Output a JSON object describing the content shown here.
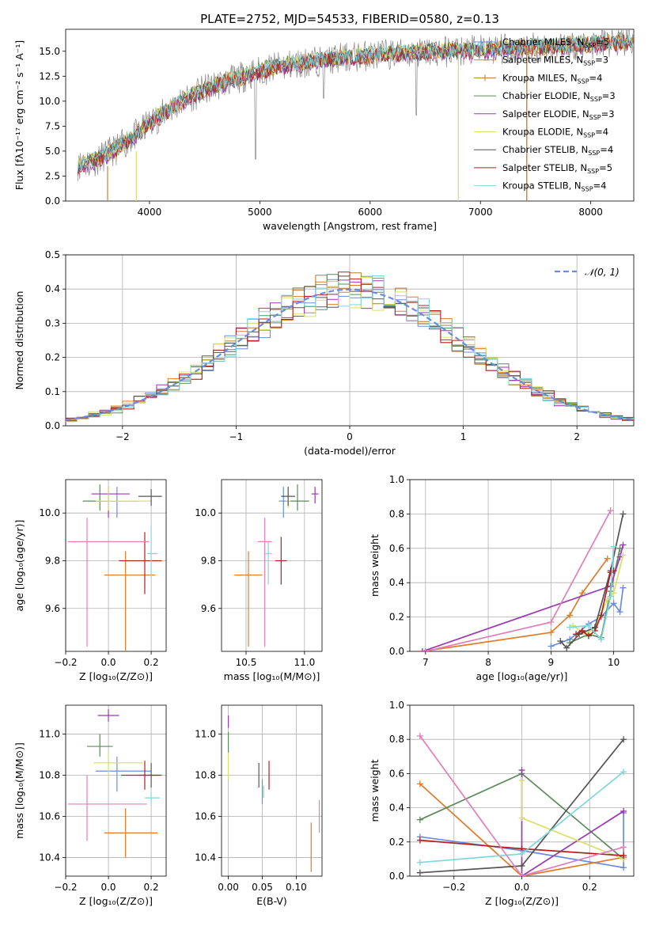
{
  "figure": {
    "title": "PLATE=2752, MJD=54533, FIBERID=0580, z=0.13"
  },
  "colors": {
    "chabrier_miles": "#6b8cdc",
    "salpeter_miles": "#e07b2a",
    "kroupa_miles": "#b37a2a",
    "chabrier_elodie": "#5c8a5c",
    "salpeter_elodie": "#9b39b0",
    "kroupa_elodie": "#d8e06a",
    "chabrier_stelib": "#555555",
    "salpeter_stelib": "#b22222",
    "kroupa_stelib": "#7fd6dc",
    "pink": "#e27fb8",
    "grid": "#b0b0b0"
  },
  "chart_data": [
    {
      "id": "spectrum",
      "type": "line",
      "xlabel": "wavelength [Angstrom, rest frame]",
      "ylabel": "Flux [fλ10⁻¹⁷ erg cm⁻² s⁻¹ A⁻¹]",
      "xlim": [
        3240,
        8390
      ],
      "ylim": [
        0,
        17.2
      ],
      "xticks": [
        4000,
        5000,
        6000,
        7000,
        8000
      ],
      "yticks": [
        0.0,
        2.5,
        5.0,
        7.5,
        10.0,
        12.5,
        15.0
      ],
      "grid": false,
      "legend_position": "upper right",
      "legend": [
        "Chabrier MILES, N_SSP=5",
        "Salpeter MILES, N_SSP=3",
        "Kroupa MILES, N_SSP=4",
        "Chabrier ELODIE, N_SSP=3",
        "Salpeter ELODIE, N_SSP=3",
        "Kroupa ELODIE, N_SSP=4",
        "Chabrier STELIB, N_SSP=4",
        "Salpeter STELIB, N_SSP=5",
        "Kroupa STELIB, N_SSP=4"
      ],
      "continuum": [
        {
          "x": 3350,
          "y": 3.6
        },
        {
          "x": 3500,
          "y": 4.0
        },
        {
          "x": 3700,
          "y": 5.2
        },
        {
          "x": 3900,
          "y": 6.8
        },
        {
          "x": 4000,
          "y": 7.8
        },
        {
          "x": 4200,
          "y": 9.3
        },
        {
          "x": 4400,
          "y": 10.6
        },
        {
          "x": 4600,
          "y": 11.6
        },
        {
          "x": 4800,
          "y": 12.3
        },
        {
          "x": 5000,
          "y": 13.0
        },
        {
          "x": 5200,
          "y": 13.5
        },
        {
          "x": 5500,
          "y": 14.0
        },
        {
          "x": 6000,
          "y": 14.6
        },
        {
          "x": 6500,
          "y": 14.9
        },
        {
          "x": 7000,
          "y": 15.1
        },
        {
          "x": 7500,
          "y": 15.4
        },
        {
          "x": 8000,
          "y": 15.7
        },
        {
          "x": 8390,
          "y": 16.0
        }
      ]
    },
    {
      "id": "residuals",
      "type": "histogram",
      "xlabel": "(data-model)/error",
      "ylabel": "Normed distribution",
      "xlim": [
        -2.5,
        2.5
      ],
      "ylim": [
        0,
        0.5
      ],
      "xticks": [
        -2,
        -1,
        0,
        1,
        2
      ],
      "yticks": [
        0.0,
        0.1,
        0.2,
        0.3,
        0.4,
        0.5
      ],
      "grid": true,
      "legend_position": "upper right",
      "legend": [
        "𝒩(0, 1)"
      ],
      "bin_width": 0.1
    },
    {
      "id": "age_vs_Z",
      "type": "scatter",
      "xlabel": "Z [log₁₀(Z/Z⊙)]",
      "ylabel": "age  [log₁₀(age/yr)]",
      "xlim": [
        -0.2,
        0.27
      ],
      "ylim": [
        9.42,
        10.14
      ],
      "xticks": [
        -0.2,
        0.0,
        0.2
      ],
      "yticks": [
        9.6,
        9.8,
        10.0
      ],
      "grid": true,
      "points": [
        {
          "x": 0.04,
          "y": 10.05,
          "xerr": [
            0.1,
            0.1
          ],
          "yerr": [
            0.07,
            0.06
          ],
          "color": "chabrier_miles"
        },
        {
          "x": 0.08,
          "y": 9.74,
          "xerr": [
            0.1,
            0.14
          ],
          "yerr": [
            0.32,
            0.1
          ],
          "color": "salpeter_miles"
        },
        {
          "x": -0.04,
          "y": 10.05,
          "xerr": [
            0.08,
            0.04
          ],
          "yerr": [
            0.04,
            0.07
          ],
          "color": "chabrier_elodie"
        },
        {
          "x": 0.0,
          "y": 10.08,
          "xerr": [
            0.08,
            0.1
          ],
          "yerr": [
            0.1,
            0.03
          ],
          "color": "salpeter_elodie"
        },
        {
          "x": 0.0,
          "y": 10.05,
          "xerr": [
            0.06,
            0.2
          ],
          "yerr": [
            0.04,
            0.06
          ],
          "color": "kroupa_elodie"
        },
        {
          "x": 0.2,
          "y": 10.07,
          "xerr": [
            0.06,
            0.05
          ],
          "yerr": [
            0.04,
            0.03
          ],
          "color": "chabrier_stelib"
        },
        {
          "x": 0.17,
          "y": 9.8,
          "xerr": [
            0.12,
            0.08
          ],
          "yerr": [
            0.14,
            0.12
          ],
          "color": "salpeter_stelib"
        },
        {
          "x": 0.2,
          "y": 9.83,
          "xerr": [
            0.02,
            0.03
          ],
          "yerr": [
            0.1,
            0.12
          ],
          "color": "kroupa_stelib"
        },
        {
          "x": -0.1,
          "y": 9.88,
          "xerr": [
            0.09,
            0.29
          ],
          "yerr": [
            0.44,
            0.1
          ],
          "color": "pink"
        }
      ]
    },
    {
      "id": "age_vs_mass",
      "type": "scatter",
      "xlabel": "mass [log₁₀(M/M⊙)]",
      "ylabel": "",
      "xlim": [
        10.29,
        11.15
      ],
      "ylim": [
        9.42,
        10.14
      ],
      "xticks": [
        10.5,
        11.0
      ],
      "yticks": [
        9.6,
        9.8,
        10.0
      ],
      "grid": true,
      "points": [
        {
          "x": 10.82,
          "y": 10.05,
          "xerr": [
            0.04,
            0.04
          ],
          "yerr": [
            0.07,
            0.06
          ],
          "color": "chabrier_miles"
        },
        {
          "x": 10.52,
          "y": 9.74,
          "xerr": [
            0.12,
            0.12
          ],
          "yerr": [
            0.3,
            0.1
          ],
          "color": "salpeter_miles"
        },
        {
          "x": 10.94,
          "y": 10.05,
          "xerr": [
            0.1,
            0.1
          ],
          "yerr": [
            0.04,
            0.07
          ],
          "color": "chabrier_elodie"
        },
        {
          "x": 11.09,
          "y": 10.08,
          "xerr": [
            0.03,
            0.03
          ],
          "yerr": [
            0.04,
            0.03
          ],
          "color": "salpeter_elodie"
        },
        {
          "x": 10.86,
          "y": 10.05,
          "xerr": [
            0.02,
            0.02
          ],
          "yerr": [
            0.03,
            0.06
          ],
          "color": "kroupa_elodie"
        },
        {
          "x": 10.86,
          "y": 10.07,
          "xerr": [
            0.06,
            0.06
          ],
          "yerr": [
            0.04,
            0.04
          ],
          "color": "chabrier_stelib"
        },
        {
          "x": 10.8,
          "y": 9.8,
          "xerr": [
            0.05,
            0.05
          ],
          "yerr": [
            0.1,
            0.1
          ],
          "color": "salpeter_stelib"
        },
        {
          "x": 10.69,
          "y": 9.83,
          "xerr": [
            0.03,
            0.03
          ],
          "yerr": [
            0.13,
            0.05
          ],
          "color": "kroupa_stelib"
        },
        {
          "x": 10.66,
          "y": 9.88,
          "xerr": [
            0.06,
            0.06
          ],
          "yerr": [
            0.44,
            0.1
          ],
          "color": "pink"
        }
      ]
    },
    {
      "id": "mass_weight_vs_age",
      "type": "line",
      "xlabel": "age  [log₁₀(age/yr)]",
      "ylabel": "mass weight",
      "xlim": [
        6.75,
        10.32
      ],
      "ylim": [
        0,
        1
      ],
      "xticks": [
        7,
        8,
        9,
        10
      ],
      "yticks": [
        0.0,
        0.2,
        0.4,
        0.6,
        0.8,
        1.0
      ],
      "grid": true,
      "series": [
        {
          "color": "chabrier_miles",
          "x": [
            9.0,
            9.3,
            9.6,
            9.8,
            10.0,
            10.1,
            10.15
          ],
          "y": [
            0.03,
            0.07,
            0.16,
            0.2,
            0.28,
            0.23,
            0.37
          ]
        },
        {
          "color": "salpeter_miles",
          "x": [
            6.95,
            9.0,
            9.3,
            9.5,
            9.9
          ],
          "y": [
            0.0,
            0.11,
            0.21,
            0.34,
            0.54
          ]
        },
        {
          "color": "chabrier_elodie",
          "x": [
            9.3,
            9.6,
            9.8,
            9.95,
            10.1
          ],
          "y": [
            0.05,
            0.1,
            0.08,
            0.35,
            0.6
          ]
        },
        {
          "color": "salpeter_elodie",
          "x": [
            6.95,
            9.95,
            10.1,
            10.15
          ],
          "y": [
            0.0,
            0.38,
            0.55,
            0.62
          ]
        },
        {
          "color": "kroupa_elodie",
          "x": [
            9.35,
            9.55,
            9.7,
            9.9,
            10.0,
            10.15
          ],
          "y": [
            0.15,
            0.1,
            0.14,
            0.3,
            0.34,
            0.56
          ]
        },
        {
          "color": "chabrier_stelib",
          "x": [
            9.15,
            9.25,
            9.45,
            9.7,
            9.95,
            10.15
          ],
          "y": [
            0.06,
            0.02,
            0.1,
            0.14,
            0.47,
            0.8
          ]
        },
        {
          "color": "salpeter_stelib",
          "x": [
            9.4,
            9.5,
            9.6,
            9.7,
            9.8,
            9.95,
            10.0
          ],
          "y": [
            0.1,
            0.12,
            0.09,
            0.12,
            0.21,
            0.46,
            0.47
          ]
        },
        {
          "color": "kroupa_stelib",
          "x": [
            9.3,
            9.6,
            9.8,
            9.95,
            10.0
          ],
          "y": [
            0.14,
            0.15,
            0.07,
            0.32,
            0.61
          ]
        },
        {
          "color": "pink",
          "x": [
            7.0,
            9.0,
            9.95
          ],
          "y": [
            0.0,
            0.17,
            0.82
          ]
        }
      ]
    },
    {
      "id": "mass_vs_Z",
      "type": "scatter",
      "xlabel": "Z [log₁₀(Z/Z⊙)]",
      "ylabel": "mass [log₁₀(M/M⊙)]",
      "xlim": [
        -0.2,
        0.27
      ],
      "ylim": [
        10.31,
        11.14
      ],
      "xticks": [
        -0.2,
        0.0,
        0.2
      ],
      "yticks": [
        10.4,
        10.6,
        10.8,
        11.0
      ],
      "grid": true,
      "points": [
        {
          "x": 0.04,
          "y": 10.82,
          "xerr": [
            0.1,
            0.16
          ],
          "yerr": [
            0.1,
            0.07
          ],
          "color": "chabrier_miles"
        },
        {
          "x": 0.08,
          "y": 10.52,
          "xerr": [
            0.1,
            0.15
          ],
          "yerr": [
            0.12,
            0.12
          ],
          "color": "salpeter_miles"
        },
        {
          "x": -0.04,
          "y": 10.94,
          "xerr": [
            0.06,
            0.06
          ],
          "yerr": [
            0.05,
            0.06
          ],
          "color": "chabrier_elodie"
        },
        {
          "x": 0.0,
          "y": 11.09,
          "xerr": [
            0.05,
            0.05
          ],
          "yerr": [
            0.03,
            0.03
          ],
          "color": "salpeter_elodie"
        },
        {
          "x": 0.0,
          "y": 10.86,
          "xerr": [
            0.07,
            0.16
          ],
          "yerr": [
            0.08,
            0.05
          ],
          "color": "kroupa_elodie"
        },
        {
          "x": 0.2,
          "y": 10.8,
          "xerr": [
            0.06,
            0.05
          ],
          "yerr": [
            0.06,
            0.06
          ],
          "color": "chabrier_stelib"
        },
        {
          "x": 0.17,
          "y": 10.8,
          "xerr": [
            0.11,
            0.07
          ],
          "yerr": [
            0.07,
            0.07
          ],
          "color": "salpeter_stelib"
        },
        {
          "x": 0.2,
          "y": 10.69,
          "xerr": [
            0.03,
            0.04
          ],
          "yerr": [
            0.03,
            0.03
          ],
          "color": "kroupa_stelib"
        },
        {
          "x": -0.1,
          "y": 10.66,
          "xerr": [
            0.09,
            0.28
          ],
          "yerr": [
            0.18,
            0.14
          ],
          "color": "pink"
        }
      ]
    },
    {
      "id": "mass_vs_ebv",
      "type": "scatter",
      "xlabel": "E(B-V)",
      "ylabel": "",
      "xlim": [
        -0.01,
        0.138
      ],
      "ylim": [
        10.31,
        11.14
      ],
      "xticks": [
        0.0,
        0.05,
        0.1
      ],
      "yticks": [
        10.4,
        10.6,
        10.8,
        11.0
      ],
      "grid": true,
      "points": [
        {
          "x": 0.05,
          "y": 10.72,
          "yerr": [
            0.06,
            0.06
          ],
          "color": "chabrier_miles"
        },
        {
          "x": 0.122,
          "y": 10.45,
          "yerr": [
            0.12,
            0.12
          ],
          "color": "salpeter_miles"
        },
        {
          "x": 0.0,
          "y": 10.96,
          "yerr": [
            0.05,
            0.05
          ],
          "color": "chabrier_elodie"
        },
        {
          "x": 0.0,
          "y": 11.06,
          "yerr": [
            0.03,
            0.03
          ],
          "color": "salpeter_elodie"
        },
        {
          "x": 0.0,
          "y": 10.86,
          "yerr": [
            0.08,
            0.05
          ],
          "color": "kroupa_elodie"
        },
        {
          "x": 0.045,
          "y": 10.8,
          "yerr": [
            0.06,
            0.06
          ],
          "color": "chabrier_stelib"
        },
        {
          "x": 0.06,
          "y": 10.8,
          "yerr": [
            0.07,
            0.07
          ],
          "color": "salpeter_stelib"
        },
        {
          "x": 0.052,
          "y": 10.72,
          "yerr": [
            0.03,
            0.03
          ],
          "color": "kroupa_stelib"
        },
        {
          "x": 0.134,
          "y": 10.6,
          "yerr": [
            0.08,
            0.08
          ],
          "color": "pink"
        }
      ]
    },
    {
      "id": "mass_weight_vs_Z",
      "type": "line",
      "xlabel": "Z [log₁₀(Z/Z⊙)]",
      "ylabel": "mass weight",
      "xlim": [
        -0.33,
        0.33
      ],
      "ylim": [
        0,
        1
      ],
      "xticks": [
        -0.2,
        0.0,
        0.2
      ],
      "yticks": [
        0.0,
        0.2,
        0.4,
        0.6,
        0.8,
        1.0
      ],
      "grid": true,
      "series": [
        {
          "color": "chabrier_miles",
          "x": [
            -0.3,
            0.0,
            0.3,
            0.3
          ],
          "y": [
            0.23,
            0.15,
            0.05,
            0.37
          ]
        },
        {
          "color": "salpeter_miles",
          "x": [
            -0.3,
            0.0,
            0.3
          ],
          "y": [
            0.54,
            0.0,
            0.11
          ]
        },
        {
          "color": "chabrier_elodie",
          "x": [
            -0.3,
            0.0,
            0.3
          ],
          "y": [
            0.33,
            0.6,
            0.1
          ]
        },
        {
          "color": "salpeter_elodie",
          "x": [
            0.0,
            0.0,
            0.3
          ],
          "y": [
            0.62,
            0.0,
            0.38
          ]
        },
        {
          "color": "kroupa_elodie",
          "x": [
            0.0,
            0.0,
            0.3
          ],
          "y": [
            0.56,
            0.34,
            0.1
          ]
        },
        {
          "color": "chabrier_stelib",
          "x": [
            -0.3,
            0.0,
            0.3
          ],
          "y": [
            0.02,
            0.06,
            0.8
          ]
        },
        {
          "color": "salpeter_stelib",
          "x": [
            -0.3,
            0.0,
            0.3
          ],
          "y": [
            0.21,
            0.16,
            0.12
          ]
        },
        {
          "color": "kroupa_stelib",
          "x": [
            -0.3,
            0.0,
            0.3
          ],
          "y": [
            0.08,
            0.13,
            0.61
          ]
        },
        {
          "color": "pink",
          "x": [
            -0.3,
            0.0,
            0.3
          ],
          "y": [
            0.82,
            0.0,
            0.17
          ]
        }
      ]
    }
  ]
}
